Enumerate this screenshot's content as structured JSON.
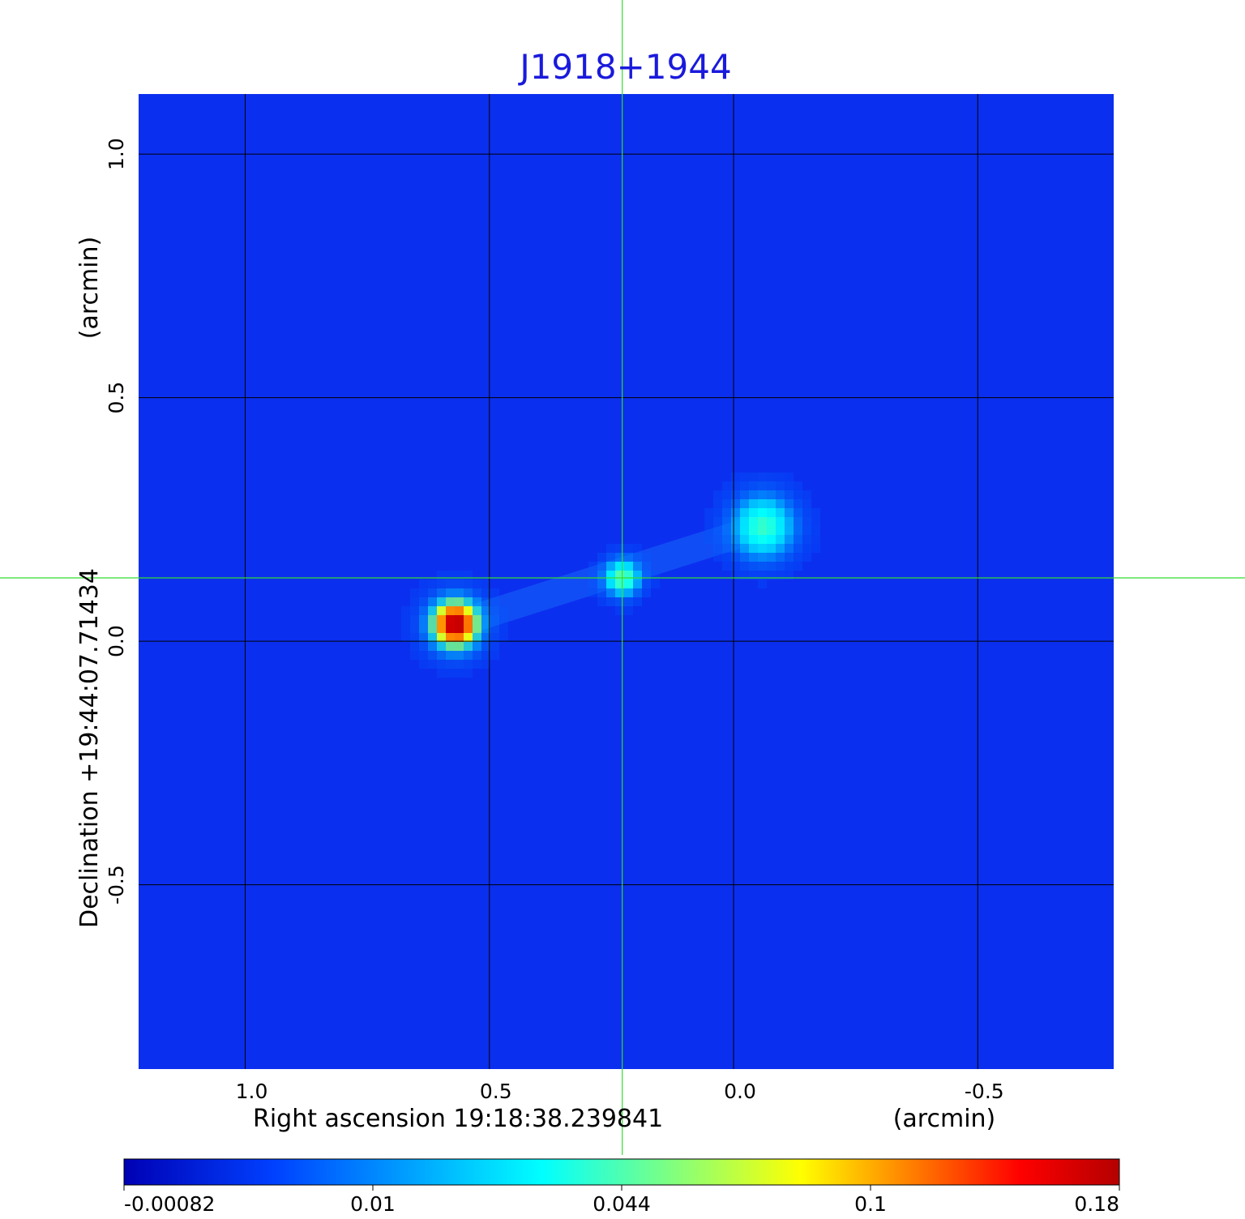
{
  "chart_data": {
    "type": "heatmap",
    "title": "J1918+1944",
    "title_color": "#1a1adc",
    "xlabel": "Right ascension  19:18:38.239841",
    "xunit": "(arcmin)",
    "ylabel": "Declination  +19:44:07.71434",
    "yunit": "(arcmin)",
    "x_ticks": [
      "1.0",
      "0.5",
      "0.0",
      "-0.5"
    ],
    "y_ticks": [
      "1.0",
      "0.5",
      "0.0",
      "-0.5"
    ],
    "x_tick_values": [
      1.0,
      0.5,
      0.0,
      -0.5
    ],
    "y_tick_values": [
      1.0,
      0.5,
      0.0,
      -0.5
    ],
    "xlim": [
      1.22,
      -0.78
    ],
    "ylim": [
      -0.88,
      1.125
    ],
    "grid": true,
    "crosshair": {
      "x": 0.228,
      "y": 0.13,
      "color": "#33dd33"
    },
    "sources": [
      {
        "x": 0.57,
        "y": 0.035,
        "peak": 0.18,
        "sigma": 0.036
      },
      {
        "x": 0.228,
        "y": 0.13,
        "peak": 0.035,
        "sigma": 0.026
      },
      {
        "x": -0.06,
        "y": 0.235,
        "peak": 0.028,
        "sigma": 0.045
      }
    ],
    "colorbar": {
      "labels": [
        "-0.00082",
        "0.01",
        "0.044",
        "0.1",
        "0.18"
      ],
      "colors": [
        "#0000b4",
        "#0040ff",
        "#00ffff",
        "#ffff00",
        "#ff0000",
        "#b40000"
      ]
    }
  }
}
